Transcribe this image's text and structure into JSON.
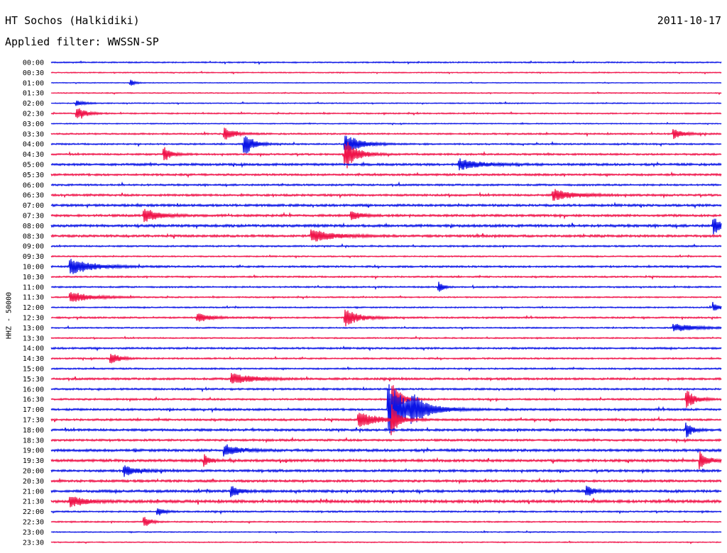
{
  "header": {
    "station": "HT Sochos (Halkidiki)",
    "date": "2011-10-17",
    "filter": "Applied filter: WWSSN-SP"
  },
  "chart_data": {
    "type": "line",
    "channel_label": "HHZ - 50000",
    "row_interval_minutes": 30,
    "row_colors": [
      "#0a14e6",
      "#f0144a"
    ],
    "rows": [
      "00:00",
      "00:30",
      "01:00",
      "01:30",
      "02:00",
      "02:30",
      "03:00",
      "03:30",
      "04:00",
      "04:30",
      "05:00",
      "05:30",
      "06:00",
      "06:30",
      "07:00",
      "07:30",
      "08:00",
      "08:30",
      "09:00",
      "09:30",
      "10:00",
      "10:30",
      "11:00",
      "11:30",
      "12:00",
      "12:30",
      "13:00",
      "13:30",
      "14:00",
      "14:30",
      "15:00",
      "15:30",
      "16:00",
      "16:30",
      "17:00",
      "17:30",
      "18:00",
      "18:30",
      "19:00",
      "19:30",
      "20:00",
      "20:30",
      "21:00",
      "21:30",
      "22:00",
      "22:30",
      "23:00",
      "23:30"
    ],
    "baseline_noise": [
      0.5,
      0.4,
      0.3,
      0.4,
      0.4,
      0.5,
      0.4,
      0.6,
      0.6,
      0.7,
      0.9,
      0.8,
      0.7,
      0.8,
      0.9,
      0.9,
      1.0,
      0.9,
      0.6,
      0.5,
      0.7,
      0.6,
      0.6,
      0.5,
      0.5,
      0.6,
      0.5,
      0.5,
      0.7,
      0.6,
      0.6,
      0.8,
      0.7,
      0.7,
      0.8,
      0.8,
      0.9,
      0.8,
      1.0,
      1.0,
      0.9,
      0.9,
      1.0,
      1.1,
      0.6,
      0.5,
      0.4,
      0.4
    ],
    "events": [
      {
        "row": 2,
        "t": 0.12,
        "amp": 4,
        "dur": 0.006
      },
      {
        "row": 4,
        "t": 0.04,
        "amp": 4,
        "dur": 0.01
      },
      {
        "row": 5,
        "t": 0.04,
        "amp": 9,
        "dur": 0.012
      },
      {
        "row": 7,
        "t": 0.26,
        "amp": 8,
        "dur": 0.015
      },
      {
        "row": 7,
        "t": 0.93,
        "amp": 8,
        "dur": 0.012
      },
      {
        "row": 8,
        "t": 0.29,
        "amp": 16,
        "dur": 0.012
      },
      {
        "row": 8,
        "t": 0.44,
        "amp": 14,
        "dur": 0.02
      },
      {
        "row": 9,
        "t": 0.44,
        "amp": 22,
        "dur": 0.015
      },
      {
        "row": 9,
        "t": 0.17,
        "amp": 10,
        "dur": 0.01
      },
      {
        "row": 10,
        "t": 0.61,
        "amp": 8,
        "dur": 0.03
      },
      {
        "row": 13,
        "t": 0.75,
        "amp": 8,
        "dur": 0.03
      },
      {
        "row": 15,
        "t": 0.14,
        "amp": 10,
        "dur": 0.02
      },
      {
        "row": 15,
        "t": 0.45,
        "amp": 8,
        "dur": 0.01
      },
      {
        "row": 16,
        "t": 0.99,
        "amp": 12,
        "dur": 0.01
      },
      {
        "row": 17,
        "t": 0.39,
        "amp": 9,
        "dur": 0.03
      },
      {
        "row": 20,
        "t": 0.03,
        "amp": 12,
        "dur": 0.03
      },
      {
        "row": 22,
        "t": 0.58,
        "amp": 7,
        "dur": 0.006
      },
      {
        "row": 23,
        "t": 0.03,
        "amp": 8,
        "dur": 0.03
      },
      {
        "row": 24,
        "t": 0.99,
        "amp": 7,
        "dur": 0.008
      },
      {
        "row": 25,
        "t": 0.44,
        "amp": 12,
        "dur": 0.02
      },
      {
        "row": 25,
        "t": 0.22,
        "amp": 6,
        "dur": 0.02
      },
      {
        "row": 26,
        "t": 0.93,
        "amp": 6,
        "dur": 0.03
      },
      {
        "row": 29,
        "t": 0.09,
        "amp": 8,
        "dur": 0.012
      },
      {
        "row": 31,
        "t": 0.27,
        "amp": 8,
        "dur": 0.03
      },
      {
        "row": 33,
        "t": 0.51,
        "amp": 30,
        "dur": 0.01
      },
      {
        "row": 33,
        "t": 0.95,
        "amp": 12,
        "dur": 0.012
      },
      {
        "row": 34,
        "t": 0.505,
        "amp": 36,
        "dur": 0.03
      },
      {
        "row": 34,
        "t": 0.54,
        "amp": 12,
        "dur": 0.02
      },
      {
        "row": 35,
        "t": 0.46,
        "amp": 10,
        "dur": 0.03
      },
      {
        "row": 35,
        "t": 0.51,
        "amp": 20,
        "dur": 0.008
      },
      {
        "row": 36,
        "t": 0.95,
        "amp": 10,
        "dur": 0.008
      },
      {
        "row": 38,
        "t": 0.26,
        "amp": 8,
        "dur": 0.02
      },
      {
        "row": 39,
        "t": 0.23,
        "amp": 9,
        "dur": 0.006
      },
      {
        "row": 39,
        "t": 0.97,
        "amp": 12,
        "dur": 0.01
      },
      {
        "row": 40,
        "t": 0.11,
        "amp": 8,
        "dur": 0.015
      },
      {
        "row": 42,
        "t": 0.27,
        "amp": 9,
        "dur": 0.01
      },
      {
        "row": 42,
        "t": 0.8,
        "amp": 8,
        "dur": 0.01
      },
      {
        "row": 43,
        "t": 0.03,
        "amp": 8,
        "dur": 0.02
      },
      {
        "row": 44,
        "t": 0.16,
        "amp": 6,
        "dur": 0.008
      },
      {
        "row": 45,
        "t": 0.14,
        "amp": 7,
        "dur": 0.008
      }
    ]
  }
}
